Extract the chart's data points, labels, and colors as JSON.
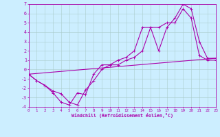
{
  "xlabel": "Windchill (Refroidissement éolien,°C)",
  "xlim": [
    0,
    23
  ],
  "ylim": [
    -4,
    7
  ],
  "yticks": [
    -4,
    -3,
    -2,
    -1,
    0,
    1,
    2,
    3,
    4,
    5,
    6,
    7
  ],
  "xticks": [
    0,
    1,
    2,
    3,
    4,
    5,
    6,
    7,
    8,
    9,
    10,
    11,
    12,
    13,
    14,
    15,
    16,
    17,
    18,
    19,
    20,
    21,
    22,
    23
  ],
  "background_color": "#cceeff",
  "grid_color": "#aacccc",
  "line_color": "#aa00aa",
  "line1_x": [
    0,
    1,
    2,
    3,
    4,
    5,
    6,
    7,
    8,
    9,
    10,
    11,
    12,
    13,
    14,
    15,
    16,
    17,
    18,
    19,
    20,
    21,
    22,
    23
  ],
  "line1_y": [
    -0.5,
    -1.2,
    -1.7,
    -2.5,
    -3.5,
    -3.8,
    -2.5,
    -2.7,
    -0.5,
    0.5,
    0.5,
    1.0,
    1.3,
    2.0,
    4.5,
    4.5,
    2.0,
    4.5,
    5.5,
    7.0,
    6.5,
    3.0,
    1.2,
    1.2
  ],
  "line2_x": [
    0,
    1,
    2,
    3,
    4,
    5,
    6,
    7,
    8,
    9,
    10,
    11,
    12,
    13,
    14,
    15,
    16,
    17,
    18,
    19,
    20,
    21,
    22,
    23
  ],
  "line2_y": [
    -0.5,
    -1.2,
    -1.7,
    -2.3,
    -2.6,
    -3.5,
    -3.8,
    -2.2,
    -1.2,
    0.0,
    0.5,
    0.5,
    1.0,
    1.3,
    2.0,
    4.5,
    4.5,
    5.0,
    5.0,
    6.5,
    5.5,
    1.5,
    1.0,
    1.0
  ],
  "line3_x": [
    0,
    23
  ],
  "line3_y": [
    -0.5,
    1.2
  ]
}
